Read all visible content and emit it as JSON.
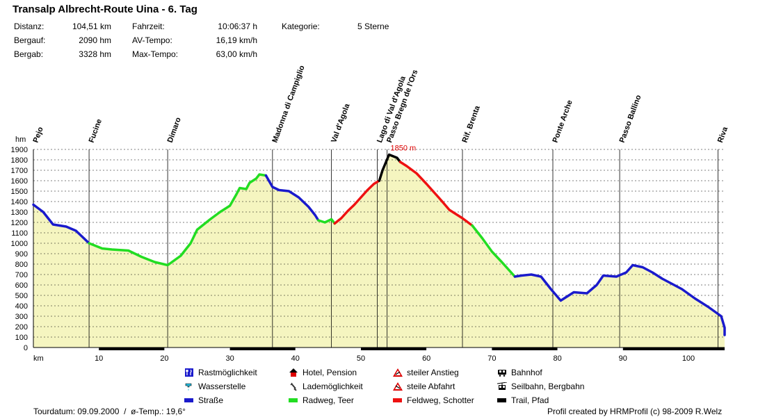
{
  "title": "Transalp Albrecht-Route Uina - 6. Tag",
  "stats": {
    "distanz_label": "Distanz:",
    "distanz": "104,51 km",
    "bergauf_label": "Bergauf:",
    "bergauf": "2090 hm",
    "bergab_label": "Bergab:",
    "bergab": "3328 hm",
    "fahrzeit_label": "Fahrzeit:",
    "fahrzeit": "10:06:37 h",
    "avtempo_label": "AV-Tempo:",
    "avtempo": "16,19 km/h",
    "maxtempo_label": "Max-Tempo:",
    "maxtempo": "63,00 km/h",
    "kategorie_label": "Kategorie:",
    "kategorie": "5 Sterne"
  },
  "legend": [
    {
      "label": "Rastmöglichkeit",
      "icon": "fork-knife-icon",
      "color": "#1a1acc"
    },
    {
      "label": "Wasserstelle",
      "icon": "water-tap-icon",
      "color": "#22bbdd"
    },
    {
      "label": "Straße",
      "icon": "line-blue",
      "color": "#1a1acc"
    },
    {
      "label": "Hotel, Pension",
      "icon": "house-icon",
      "color": "#dd0000"
    },
    {
      "label": "Lademöglichkeit",
      "icon": "plug-icon",
      "color": "#333333"
    },
    {
      "label": "Radweg, Teer",
      "icon": "line-green",
      "color": "#22dd22"
    },
    {
      "label": "steiler Anstieg",
      "icon": "warning-up-icon",
      "color": "#dd0000"
    },
    {
      "label": "steile Abfahrt",
      "icon": "warning-down-icon",
      "color": "#dd0000"
    },
    {
      "label": "Feldweg, Schotter",
      "icon": "line-red",
      "color": "#ee1111"
    },
    {
      "label": "Bahnhof",
      "icon": "train-icon",
      "color": "#000000"
    },
    {
      "label": "Seilbahn, Bergbahn",
      "icon": "cable-car-icon",
      "color": "#000000"
    },
    {
      "label": "Trail, Pfad",
      "icon": "line-black",
      "color": "#000000"
    }
  ],
  "footer": {
    "left": "Tourdatum: 09.09.2000  /  ø-Temp.: 19,6°",
    "right": "Profil created by HRMProfil (c) 98-2009 R.Welz"
  },
  "chart_data": {
    "type": "area",
    "ylabel": "hm",
    "xlabel": "km",
    "xlim": [
      0,
      104.51
    ],
    "ylim": [
      0,
      1900
    ],
    "xticks": [
      10,
      20,
      30,
      40,
      50,
      60,
      70,
      80,
      90,
      100
    ],
    "yticks": [
      0,
      100,
      200,
      300,
      400,
      500,
      600,
      700,
      800,
      900,
      1000,
      1100,
      1200,
      1300,
      1400,
      1500,
      1600,
      1700,
      1800,
      1900
    ],
    "grid": true,
    "fill_color": "#f5f5c0",
    "peak_label": "1850 m",
    "peak": {
      "x": 54.3,
      "y": 1850
    },
    "waypoints": [
      {
        "name": "Pejo",
        "x": 0
      },
      {
        "name": "Fucine",
        "x": 8.5
      },
      {
        "name": "Dimaro",
        "x": 20.5
      },
      {
        "name": "Madonna di Campiglio",
        "x": 36.5
      },
      {
        "name": "Val d'Agola",
        "x": 45.5
      },
      {
        "name": "Lago di Val d'Agola",
        "x": 52.5
      },
      {
        "name": "Passo Bregn de l'Ors",
        "x": 54.0
      },
      {
        "name": "Rif. Brenta",
        "x": 65.5
      },
      {
        "name": "Ponte Arche",
        "x": 79.3
      },
      {
        "name": "Passo Ballino",
        "x": 89.5
      },
      {
        "name": "Riva",
        "x": 104.5
      }
    ],
    "series": [
      {
        "surface": "Straße",
        "color": "#1a1acc",
        "points": [
          [
            0,
            1370
          ],
          [
            1.5,
            1300
          ],
          [
            3,
            1180
          ],
          [
            5,
            1160
          ],
          [
            6.5,
            1120
          ],
          [
            8.5,
            1000
          ]
        ]
      },
      {
        "surface": "Radweg, Teer",
        "color": "#22dd22",
        "points": [
          [
            8.5,
            1000
          ],
          [
            10.5,
            950
          ],
          [
            12,
            940
          ],
          [
            14.5,
            930
          ],
          [
            16.5,
            870
          ],
          [
            18.5,
            820
          ],
          [
            20.5,
            790
          ],
          [
            22.5,
            880
          ],
          [
            24,
            1000
          ],
          [
            25,
            1130
          ],
          [
            27,
            1230
          ],
          [
            28.5,
            1300
          ],
          [
            30,
            1360
          ],
          [
            31,
            1470
          ],
          [
            31.5,
            1530
          ],
          [
            32.5,
            1520
          ],
          [
            33,
            1580
          ],
          [
            34,
            1620
          ],
          [
            34.5,
            1660
          ],
          [
            35.5,
            1650
          ]
        ]
      },
      {
        "surface": "Straße",
        "color": "#1a1acc",
        "points": [
          [
            35.5,
            1650
          ],
          [
            36.5,
            1540
          ],
          [
            37.5,
            1510
          ],
          [
            39,
            1500
          ],
          [
            40.5,
            1440
          ],
          [
            42,
            1350
          ],
          [
            43,
            1270
          ],
          [
            43.5,
            1220
          ]
        ]
      },
      {
        "surface": "Radweg, Teer",
        "color": "#22dd22",
        "points": [
          [
            43.5,
            1220
          ],
          [
            44.5,
            1200
          ],
          [
            45.5,
            1230
          ],
          [
            46,
            1190
          ]
        ]
      },
      {
        "surface": "Feldweg, Schotter",
        "color": "#ee1111",
        "points": [
          [
            46,
            1190
          ],
          [
            47,
            1240
          ],
          [
            48,
            1310
          ],
          [
            49,
            1370
          ],
          [
            50,
            1440
          ],
          [
            51,
            1510
          ],
          [
            52,
            1570
          ],
          [
            52.8,
            1600
          ]
        ]
      },
      {
        "surface": "Trail, Pfad",
        "color": "#000000",
        "points": [
          [
            52.8,
            1600
          ],
          [
            53.3,
            1700
          ],
          [
            54.3,
            1850
          ],
          [
            55.5,
            1820
          ],
          [
            56,
            1780
          ]
        ]
      },
      {
        "surface": "Feldweg, Schotter",
        "color": "#ee1111",
        "points": [
          [
            56,
            1780
          ],
          [
            57,
            1740
          ],
          [
            58.5,
            1670
          ],
          [
            60,
            1570
          ],
          [
            62,
            1430
          ],
          [
            63.5,
            1320
          ],
          [
            65.5,
            1240
          ],
          [
            67,
            1170
          ]
        ]
      },
      {
        "surface": "Radweg, Teer",
        "color": "#22dd22",
        "points": [
          [
            67,
            1170
          ],
          [
            68.5,
            1050
          ],
          [
            70,
            920
          ],
          [
            71.5,
            820
          ],
          [
            73.5,
            680
          ]
        ]
      },
      {
        "surface": "Straße",
        "color": "#1a1acc",
        "points": [
          [
            73.5,
            680
          ],
          [
            74.5,
            690
          ],
          [
            76,
            700
          ],
          [
            77.5,
            680
          ],
          [
            79,
            560
          ],
          [
            80.5,
            450
          ],
          [
            82.5,
            530
          ],
          [
            84.5,
            520
          ],
          [
            86,
            600
          ],
          [
            87,
            690
          ],
          [
            89,
            680
          ],
          [
            90.5,
            720
          ],
          [
            91.5,
            790
          ],
          [
            93,
            770
          ],
          [
            94.5,
            720
          ],
          [
            96,
            660
          ],
          [
            97.5,
            610
          ],
          [
            99,
            560
          ],
          [
            101,
            470
          ],
          [
            103,
            390
          ],
          [
            105,
            300
          ],
          [
            107.5,
            190
          ],
          [
            108.5,
            130
          ],
          [
            110,
            120
          ]
        ]
      }
    ]
  }
}
